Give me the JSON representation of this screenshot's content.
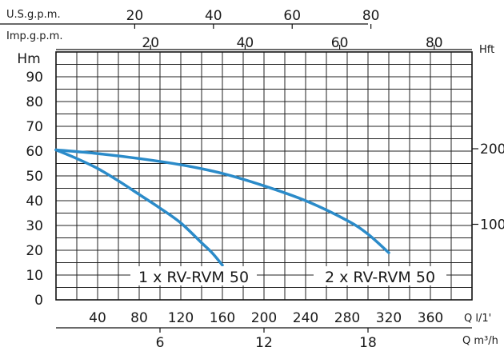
{
  "chart_data": {
    "type": "line",
    "ylabel": "Hm",
    "ylim": [
      0,
      100
    ],
    "y_ticks": [
      "0",
      "10",
      "20",
      "30",
      "40",
      "50",
      "60",
      "70",
      "80",
      "90"
    ],
    "xlim": [
      0,
      400
    ],
    "x_unit_label": "Q l/1'",
    "x_ticks": [
      "40",
      "80",
      "120",
      "160",
      "200",
      "240",
      "280",
      "320",
      "360"
    ],
    "secondary_x_axes": [
      {
        "label": "Q m³/h",
        "ticks": [
          "6",
          "12",
          "18"
        ],
        "values": [
          6,
          12,
          18
        ]
      },
      {
        "label": "Imp.g.p.m.",
        "ticks": [
          "20",
          "40",
          "60",
          "80"
        ],
        "values": [
          20,
          40,
          60,
          80
        ]
      },
      {
        "label": "U.S.g.p.m.",
        "ticks": [
          "20",
          "40",
          "60",
          "80"
        ],
        "values": [
          20,
          40,
          60,
          80
        ]
      }
    ],
    "secondary_y_axis": {
      "label": "Hft",
      "ticks": [
        "100",
        "200"
      ],
      "values": [
        100,
        200
      ]
    },
    "series": [
      {
        "name": "1 x RV-RVM 50",
        "color": "#2b8bc9",
        "x": [
          0,
          20,
          40,
          60,
          80,
          100,
          120,
          140,
          150,
          160
        ],
        "y": [
          60.5,
          57,
          53,
          48,
          42.5,
          37,
          31,
          23,
          19,
          14
        ]
      },
      {
        "name": "2 x RV-RVM 50",
        "color": "#2b8bc9",
        "x": [
          0,
          40,
          80,
          120,
          160,
          200,
          240,
          280,
          300,
          320
        ],
        "y": [
          60.5,
          59,
          57,
          54.5,
          51,
          46,
          40,
          32,
          26.5,
          19
        ]
      }
    ],
    "grid": true,
    "grid_x_step": 20,
    "grid_y_step": 5
  }
}
